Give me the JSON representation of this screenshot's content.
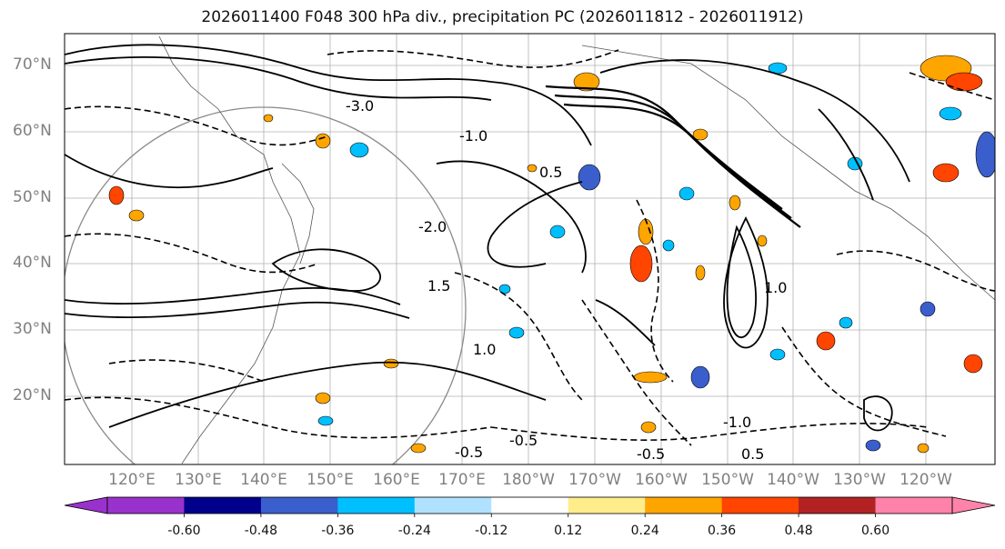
{
  "title": "2026011400 F048 300 hPa div., precipitation PC (2026011812 - 2026011912)",
  "lat_labels": [
    "70°N",
    "60°N",
    "50°N",
    "40°N",
    "30°N",
    "20°N"
  ],
  "lon_labels": [
    "120°E",
    "130°E",
    "140°E",
    "150°E",
    "160°E",
    "170°E",
    "180°W",
    "170°W",
    "160°W",
    "150°W",
    "140°W",
    "130°W",
    "120°W"
  ],
  "contour_labels": [
    "-3.0",
    "-1.0",
    "1.0",
    "-0.5",
    "-0.5",
    "0.5",
    "-2.0",
    "1.5",
    "-1.0",
    "0.5",
    "1.0",
    "-0.5"
  ],
  "colorbar": {
    "colors": [
      "#9932CC",
      "#00008B",
      "#3A5FCD",
      "#00BFFF",
      "#B0E2FF",
      "#FFFFFF",
      "#FFEC8B",
      "#FFA500",
      "#FF4500",
      "#B22222",
      "#FF82AB"
    ],
    "tick_labels": [
      "-0.60",
      "-0.48",
      "-0.36",
      "-0.24",
      "-0.12",
      "0.12",
      "0.24",
      "0.36",
      "0.48",
      "0.60"
    ]
  }
}
